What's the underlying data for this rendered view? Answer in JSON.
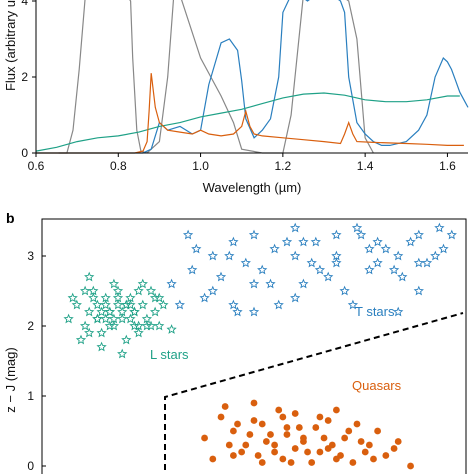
{
  "panel_b_label": "b",
  "chart_data": [
    {
      "type": "line",
      "panel": "a",
      "xlabel": "Wavelength (µm)",
      "ylabel": "Flux (arbitrary u",
      "xlim": [
        0.6,
        1.65
      ],
      "ylim": [
        0,
        4
      ],
      "xticks": [
        "0.6",
        "0.8",
        "1.0",
        "1.2",
        "1.4",
        "1.6"
      ],
      "yticks": [
        "0",
        "2",
        "4"
      ],
      "series": [
        {
          "color": "#888888",
          "x": [
            0.655,
            0.675,
            0.69,
            0.705,
            0.72,
            0.75,
            0.78,
            0.8,
            0.82,
            0.83,
            0.835,
            0.845,
            0.855,
            0.87,
            0.9,
            0.92,
            0.935,
            0.95,
            1.0,
            1.05,
            1.08,
            1.1,
            1.15,
            1.2,
            1.22,
            1.25,
            1.3,
            1.34,
            1.36,
            1.38,
            1.4,
            1.42
          ],
          "y": [
            0,
            0,
            0.6,
            2.2,
            4.3,
            4.3,
            4.3,
            4.3,
            4.3,
            4.0,
            2.5,
            0.6,
            0.05,
            0,
            0.3,
            2.0,
            4.3,
            4.3,
            2.5,
            1.5,
            0.8,
            0.1,
            0,
            0,
            1.0,
            4.3,
            4.3,
            4.3,
            4.0,
            3.0,
            0.4,
            0
          ]
        },
        {
          "color": "#2a7fbf",
          "x": [
            0.6,
            0.8,
            0.85,
            0.86,
            0.87,
            0.88,
            0.9,
            0.92,
            0.95,
            0.98,
            1.0,
            1.02,
            1.05,
            1.07,
            1.09,
            1.1,
            1.11,
            1.13,
            1.15,
            1.17,
            1.19,
            1.2,
            1.22,
            1.24,
            1.26,
            1.28,
            1.3,
            1.32,
            1.34,
            1.35,
            1.36,
            1.38,
            1.4,
            1.42,
            1.44,
            1.46,
            1.5,
            1.53,
            1.55,
            1.57,
            1.59,
            1.6,
            1.61,
            1.62,
            1.63,
            1.64,
            1.65
          ],
          "y": [
            0,
            0,
            0,
            0,
            0.05,
            0.1,
            0.8,
            0.6,
            0.7,
            0.5,
            0.6,
            1.8,
            2.9,
            3.0,
            2.7,
            1.9,
            0.9,
            0.4,
            0.6,
            0.9,
            2.0,
            3.7,
            4.3,
            4.3,
            4.0,
            4.4,
            4.3,
            4.2,
            4.0,
            3.7,
            2.0,
            0.8,
            0.5,
            0.3,
            0.2,
            0.2,
            0.3,
            0.6,
            1.0,
            2.0,
            2.5,
            2.4,
            2.2,
            1.9,
            1.6,
            1.4,
            1.2
          ]
        },
        {
          "color": "#1fa187",
          "x": [
            0.6,
            0.65,
            0.7,
            0.75,
            0.8,
            0.85,
            0.9,
            0.95,
            1.0,
            1.05,
            1.1,
            1.15,
            1.2,
            1.25,
            1.3,
            1.35,
            1.4,
            1.45,
            1.5,
            1.55,
            1.6,
            1.63
          ],
          "y": [
            0.05,
            0.15,
            0.3,
            0.4,
            0.45,
            0.55,
            0.7,
            0.8,
            0.95,
            1.05,
            1.15,
            1.3,
            1.45,
            1.55,
            1.58,
            1.52,
            1.4,
            1.35,
            1.35,
            1.4,
            1.5,
            1.5
          ]
        },
        {
          "color": "#d95f0e",
          "x": [
            0.6,
            0.84,
            0.86,
            0.87,
            0.875,
            0.88,
            0.89,
            0.9,
            0.92,
            0.95,
            0.98,
            1.0,
            1.02,
            1.05,
            1.08,
            1.1,
            1.11,
            1.12,
            1.13,
            1.15,
            1.2,
            1.25,
            1.3,
            1.34,
            1.35,
            1.36,
            1.37,
            1.38,
            1.42,
            1.5,
            1.55,
            1.6,
            1.64
          ],
          "y": [
            0,
            0,
            0.05,
            0.3,
            1.1,
            2.1,
            1.2,
            0.8,
            0.6,
            0.55,
            0.5,
            0.6,
            0.5,
            0.45,
            0.5,
            0.7,
            1.1,
            0.7,
            0.5,
            0.45,
            0.4,
            0.35,
            0.3,
            0.25,
            0.5,
            0.8,
            0.5,
            0.3,
            0.28,
            0.25,
            0.23,
            0.2,
            0.2
          ]
        }
      ]
    },
    {
      "type": "scatter",
      "panel": "b",
      "ylabel": "z − J (mag)",
      "ylim": [
        -0.2,
        3.5
      ],
      "xlim": [
        0,
        1
      ],
      "yticks": [
        "0",
        "1",
        "2",
        "3"
      ],
      "annotations": [
        "L stars",
        "T stars",
        "Quasars"
      ],
      "series": [
        {
          "name": "L stars",
          "marker": "star",
          "color": "#1fa187",
          "x": [
            0.05,
            0.07,
            0.09,
            0.1,
            0.11,
            0.12,
            0.13,
            0.14,
            0.15,
            0.16,
            0.17,
            0.18,
            0.19,
            0.2,
            0.21,
            0.22,
            0.23,
            0.24,
            0.25,
            0.26,
            0.27,
            0.28,
            0.08,
            0.1,
            0.12,
            0.14,
            0.16,
            0.18,
            0.2,
            0.22,
            0.24,
            0.26,
            0.11,
            0.13,
            0.15,
            0.17,
            0.19,
            0.21,
            0.23,
            0.06,
            0.09,
            0.12,
            0.15,
            0.18,
            0.21,
            0.1,
            0.14,
            0.17,
            0.2,
            0.25,
            0.13,
            0.16,
            0.19,
            0.22,
            0.27,
            0.3
          ],
          "y": [
            2.1,
            2.3,
            2.0,
            2.2,
            2.4,
            2.1,
            1.9,
            2.3,
            2.2,
            2.0,
            2.5,
            2.1,
            2.3,
            2.4,
            2.2,
            2.0,
            2.3,
            2.1,
            2.5,
            2.2,
            2.0,
            2.3,
            1.8,
            1.9,
            2.1,
            2.4,
            2.6,
            2.2,
            2.1,
            1.9,
            2.0,
            2.4,
            2.5,
            2.2,
            2.0,
            2.3,
            1.8,
            2.2,
            2.6,
            2.4,
            2.5,
            2.3,
            2.2,
            1.6,
            2.0,
            2.7,
            2.1,
            2.4,
            2.3,
            2.0,
            1.7,
            2.1,
            2.3,
            2.5,
            2.4,
            1.95
          ]
        },
        {
          "name": "T stars",
          "marker": "star",
          "color": "#2a7fbf",
          "x": [
            0.3,
            0.35,
            0.4,
            0.45,
            0.5,
            0.55,
            0.6,
            0.65,
            0.7,
            0.75,
            0.8,
            0.85,
            0.9,
            0.95,
            0.32,
            0.38,
            0.42,
            0.48,
            0.52,
            0.58,
            0.62,
            0.68,
            0.72,
            0.78,
            0.82,
            0.88,
            0.92,
            0.98,
            0.36,
            0.44,
            0.5,
            0.56,
            0.64,
            0.7,
            0.76,
            0.84,
            0.9,
            0.96,
            0.4,
            0.46,
            0.54,
            0.6,
            0.66,
            0.74,
            0.8,
            0.86,
            0.94,
            0.6,
            0.7,
            0.78,
            0.5,
            0.45,
            0.85,
            0.9,
            0.34,
            0.62
          ],
          "y": [
            2.6,
            2.8,
            3.0,
            3.2,
            3.3,
            3.1,
            3.0,
            3.2,
            3.3,
            3.4,
            3.2,
            3.0,
            3.3,
            3.4,
            2.3,
            2.4,
            2.7,
            2.9,
            2.8,
            3.2,
            2.6,
            2.7,
            2.5,
            2.8,
            3.1,
            3.2,
            2.9,
            3.3,
            3.1,
            3.0,
            2.2,
            2.3,
            2.9,
            3.0,
            3.3,
            2.8,
            2.9,
            3.1,
            2.5,
            2.2,
            2.6,
            2.4,
            2.8,
            2.3,
            2.9,
            2.7,
            3.0,
            3.4,
            2.9,
            3.1,
            2.6,
            2.3,
            2.2,
            2.5,
            3.3,
            3.2
          ]
        },
        {
          "name": "Quasars",
          "marker": "circle",
          "color": "#d95f0e",
          "x": [
            0.38,
            0.42,
            0.45,
            0.48,
            0.5,
            0.52,
            0.55,
            0.58,
            0.6,
            0.62,
            0.65,
            0.68,
            0.7,
            0.72,
            0.75,
            0.78,
            0.8,
            0.82,
            0.85,
            0.4,
            0.44,
            0.47,
            0.53,
            0.57,
            0.6,
            0.64,
            0.67,
            0.71,
            0.74,
            0.77,
            0.43,
            0.5,
            0.54,
            0.61,
            0.66,
            0.69,
            0.73,
            0.79,
            0.46,
            0.51,
            0.56,
            0.59,
            0.63,
            0.7,
            0.76,
            0.49,
            0.55,
            0.62,
            0.68,
            0.52,
            0.58,
            0.84,
            0.88,
            0.45,
            0.57,
            0.66
          ],
          "y": [
            0.4,
            0.7,
            0.5,
            0.3,
            0.9,
            0.6,
            0.2,
            0.45,
            0.75,
            0.35,
            0.55,
            0.25,
            0.8,
            0.4,
            0.6,
            0.3,
            0.5,
            0.15,
            0.35,
            0.1,
            0.3,
            0.2,
            0.35,
            0.1,
            0.25,
            0.05,
            0.4,
            0.15,
            0.05,
            0.2,
            0.85,
            0.65,
            0.45,
            0.55,
            0.7,
            0.3,
            0.5,
            0.1,
            0.6,
            0.15,
            0.8,
            0.05,
            0.2,
            0.1,
            0.35,
            0.45,
            0.3,
            0.4,
            0.65,
            0.05,
            0.55,
            0.25,
            0.0,
            0.15,
            0.7,
            0.2
          ]
        }
      ]
    }
  ]
}
